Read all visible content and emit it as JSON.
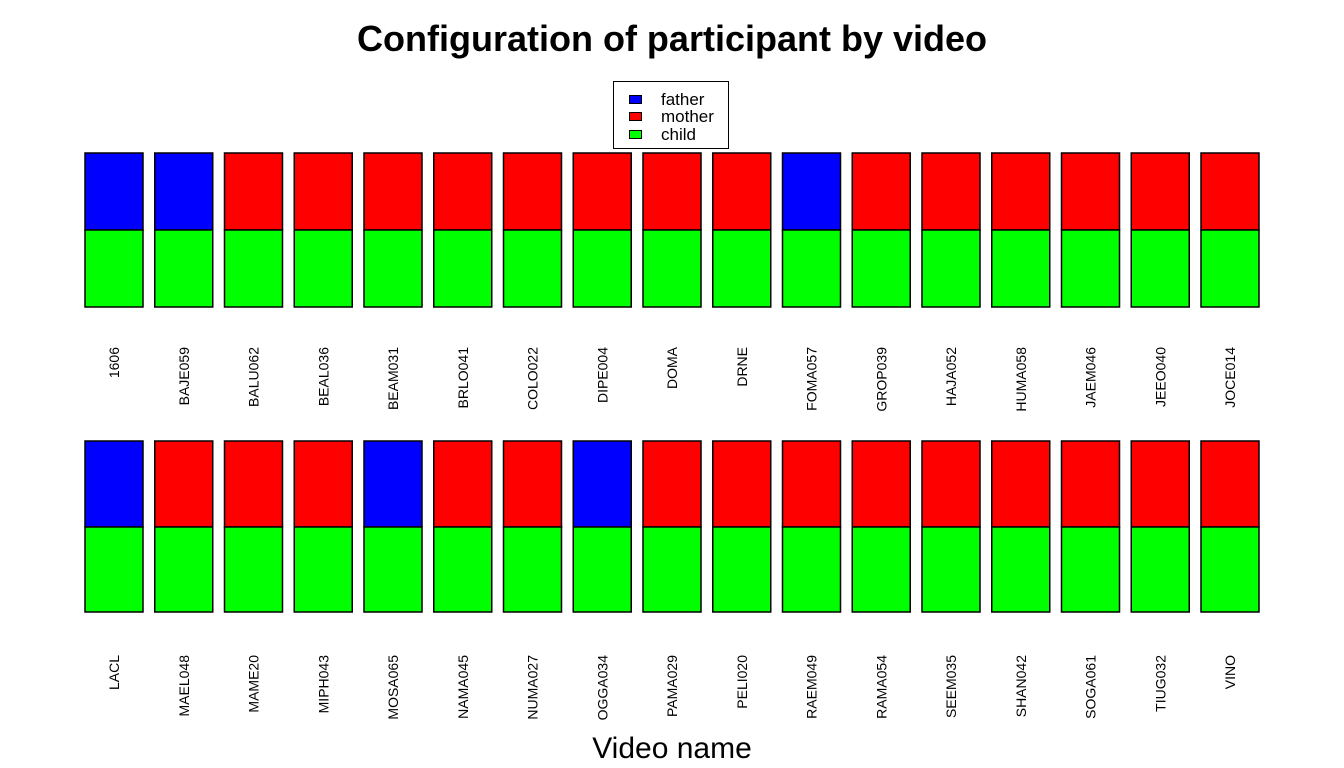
{
  "chart_data": {
    "type": "bar",
    "title": "Configuration of participant by video",
    "xlabel": "Video name",
    "ylabel": "",
    "legend": {
      "placement": "top-center",
      "entries": [
        {
          "name": "father",
          "color": "#0000FF"
        },
        {
          "name": "mother",
          "color": "#FF0000"
        },
        {
          "name": "child",
          "color": "#00FF00"
        }
      ]
    },
    "grid": false,
    "stacked": true,
    "series_colors": {
      "father": "#0000FF",
      "mother": "#FF0000",
      "child": "#00FF00"
    },
    "rows": [
      {
        "videos": [
          {
            "name": "1606",
            "parent": "father"
          },
          {
            "name": "BAJE059",
            "parent": "father"
          },
          {
            "name": "BALU062",
            "parent": "mother"
          },
          {
            "name": "BEAL036",
            "parent": "mother"
          },
          {
            "name": "BEAM031",
            "parent": "mother"
          },
          {
            "name": "BRLO041",
            "parent": "mother"
          },
          {
            "name": "COLO022",
            "parent": "mother"
          },
          {
            "name": "DIPE004",
            "parent": "mother"
          },
          {
            "name": "DOMA",
            "parent": "mother"
          },
          {
            "name": "DRNE",
            "parent": "mother"
          },
          {
            "name": "FOMA057",
            "parent": "father"
          },
          {
            "name": "GROP039",
            "parent": "mother"
          },
          {
            "name": "HAJA052",
            "parent": "mother"
          },
          {
            "name": "HUMA058",
            "parent": "mother"
          },
          {
            "name": "JAEM046",
            "parent": "mother"
          },
          {
            "name": "JEEO040",
            "parent": "mother"
          },
          {
            "name": "JOCE014",
            "parent": "mother"
          }
        ]
      },
      {
        "videos": [
          {
            "name": "LACL",
            "parent": "father"
          },
          {
            "name": "MAEL048",
            "parent": "mother"
          },
          {
            "name": "MAME20",
            "parent": "mother"
          },
          {
            "name": "MIPH043",
            "parent": "mother"
          },
          {
            "name": "MOSA065",
            "parent": "father"
          },
          {
            "name": "NAMA045",
            "parent": "mother"
          },
          {
            "name": "NUMA027",
            "parent": "mother"
          },
          {
            "name": "OGGA034",
            "parent": "father"
          },
          {
            "name": "PAMA029",
            "parent": "mother"
          },
          {
            "name": "PELI020",
            "parent": "mother"
          },
          {
            "name": "RAEM049",
            "parent": "mother"
          },
          {
            "name": "RAMA054",
            "parent": "mother"
          },
          {
            "name": "SEEM035",
            "parent": "mother"
          },
          {
            "name": "SHAN042",
            "parent": "mother"
          },
          {
            "name": "SOGA061",
            "parent": "mother"
          },
          {
            "name": "TIUG032",
            "parent": "mother"
          },
          {
            "name": "VINO",
            "parent": "mother"
          }
        ]
      }
    ]
  }
}
